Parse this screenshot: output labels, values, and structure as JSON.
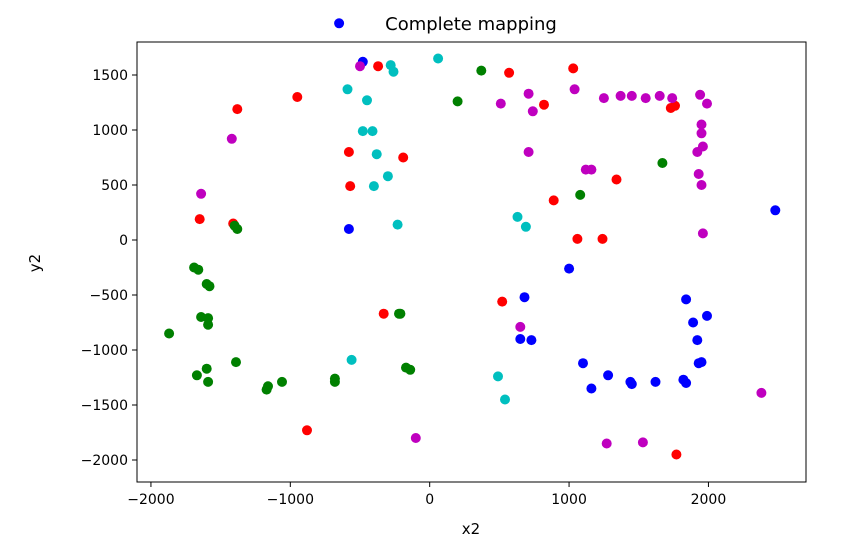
{
  "chart_data": {
    "type": "scatter",
    "title": "Complete mapping",
    "xlabel": "x2",
    "ylabel": "y2",
    "xlim": [
      -2100,
      2700
    ],
    "ylim": [
      -2200,
      1800
    ],
    "xticks": [
      -2000,
      -1000,
      0,
      1000,
      2000
    ],
    "yticks": [
      -2000,
      -1500,
      -1000,
      -500,
      0,
      500,
      1000,
      1500
    ],
    "xtick_labels": [
      "−2000",
      "−1000",
      "0",
      "1000",
      "2000"
    ],
    "ytick_labels": [
      "−2000",
      "−1500",
      "−1000",
      "−500",
      "0",
      "500",
      "1000",
      "1500"
    ],
    "grid": false,
    "series": [
      {
        "color": "#0000ff",
        "points": [
          [
            -480,
            1620
          ],
          [
            -580,
            100
          ],
          [
            -650,
            1970
          ],
          [
            680,
            -520
          ],
          [
            650,
            -900
          ],
          [
            730,
            -910
          ],
          [
            1000,
            -260
          ],
          [
            1100,
            -1120
          ],
          [
            1160,
            -1350
          ],
          [
            1280,
            -1230
          ],
          [
            1440,
            -1290
          ],
          [
            1450,
            -1310
          ],
          [
            1620,
            -1290
          ],
          [
            1820,
            -1270
          ],
          [
            1840,
            -1300
          ],
          [
            1840,
            -540
          ],
          [
            1890,
            -750
          ],
          [
            1920,
            -910
          ],
          [
            1930,
            -1120
          ],
          [
            1950,
            -1110
          ],
          [
            1990,
            -690
          ],
          [
            2480,
            270
          ]
        ]
      },
      {
        "color": "#ff0000",
        "points": [
          [
            -1650,
            190
          ],
          [
            -1410,
            150
          ],
          [
            -1380,
            1190
          ],
          [
            -950,
            1300
          ],
          [
            -880,
            -1730
          ],
          [
            -580,
            800
          ],
          [
            -570,
            490
          ],
          [
            -370,
            1580
          ],
          [
            -330,
            -670
          ],
          [
            -190,
            750
          ],
          [
            520,
            -560
          ],
          [
            570,
            1520
          ],
          [
            820,
            1230
          ],
          [
            890,
            360
          ],
          [
            1030,
            1560
          ],
          [
            1060,
            10
          ],
          [
            1240,
            10
          ],
          [
            1340,
            550
          ],
          [
            1730,
            1200
          ],
          [
            1760,
            1220
          ],
          [
            1770,
            -1950
          ]
        ]
      },
      {
        "color": "#008000",
        "points": [
          [
            -1870,
            -850
          ],
          [
            -1690,
            -250
          ],
          [
            -1670,
            -1230
          ],
          [
            -1660,
            -270
          ],
          [
            -1640,
            -700
          ],
          [
            -1600,
            -400
          ],
          [
            -1590,
            -710
          ],
          [
            -1590,
            -770
          ],
          [
            -1600,
            -1170
          ],
          [
            -1590,
            -1290
          ],
          [
            -1580,
            -420
          ],
          [
            -1400,
            130
          ],
          [
            -1380,
            100
          ],
          [
            -1390,
            -1110
          ],
          [
            -1170,
            -1360
          ],
          [
            -1160,
            -1330
          ],
          [
            -1060,
            -1290
          ],
          [
            -680,
            -1260
          ],
          [
            -680,
            -1290
          ],
          [
            -220,
            -670
          ],
          [
            -210,
            -670
          ],
          [
            -170,
            -1160
          ],
          [
            -140,
            -1180
          ],
          [
            200,
            1260
          ],
          [
            370,
            1540
          ],
          [
            1080,
            410
          ],
          [
            1670,
            700
          ]
        ]
      },
      {
        "color": "#00bfbf",
        "points": [
          [
            -590,
            1370
          ],
          [
            -560,
            -1090
          ],
          [
            -480,
            990
          ],
          [
            -450,
            1270
          ],
          [
            -410,
            990
          ],
          [
            -400,
            490
          ],
          [
            -380,
            780
          ],
          [
            -300,
            580
          ],
          [
            -280,
            1590
          ],
          [
            -260,
            1530
          ],
          [
            -230,
            140
          ],
          [
            60,
            1650
          ],
          [
            490,
            -1240
          ],
          [
            540,
            -1450
          ],
          [
            630,
            210
          ],
          [
            690,
            120
          ]
        ]
      },
      {
        "color": "#bf00bf",
        "points": [
          [
            -1640,
            420
          ],
          [
            -1420,
            920
          ],
          [
            -500,
            1580
          ],
          [
            -100,
            -1800
          ],
          [
            510,
            1240
          ],
          [
            650,
            -790
          ],
          [
            710,
            1330
          ],
          [
            710,
            800
          ],
          [
            740,
            1170
          ],
          [
            1040,
            1370
          ],
          [
            1120,
            640
          ],
          [
            1160,
            640
          ],
          [
            1250,
            1290
          ],
          [
            1370,
            1310
          ],
          [
            1450,
            1310
          ],
          [
            1550,
            1290
          ],
          [
            1650,
            1310
          ],
          [
            1740,
            1290
          ],
          [
            1920,
            800
          ],
          [
            1930,
            600
          ],
          [
            1940,
            1320
          ],
          [
            1950,
            970
          ],
          [
            1950,
            500
          ],
          [
            1950,
            1050
          ],
          [
            1960,
            850
          ],
          [
            1960,
            60
          ],
          [
            1990,
            1240
          ],
          [
            1270,
            -1850
          ],
          [
            1530,
            -1840
          ],
          [
            2380,
            -1390
          ]
        ]
      }
    ]
  }
}
